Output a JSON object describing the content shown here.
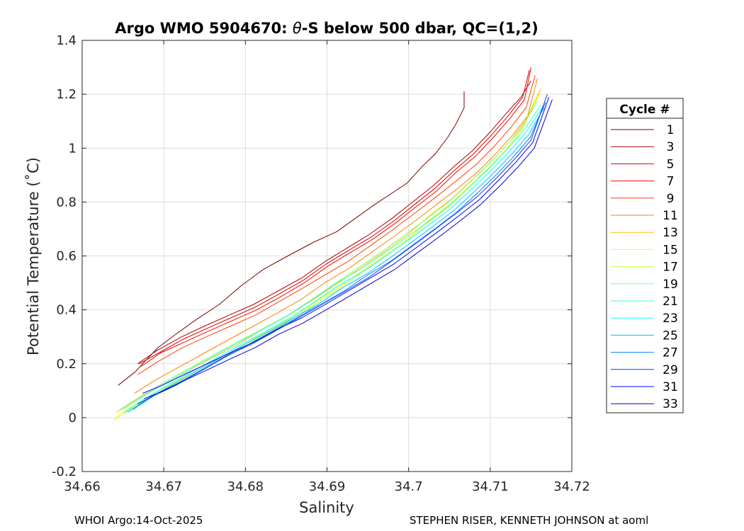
{
  "chart_data": {
    "type": "line",
    "title_prefix": "Argo WMO 5904670: ",
    "title_theta": "θ",
    "title_suffix": "-S below 500 dbar,  QC=(1,2)",
    "xlabel": "Salinity",
    "ylabel": "Potential Temperature (˚C)",
    "xlim": [
      34.66,
      34.72
    ],
    "ylim": [
      -0.2,
      1.4
    ],
    "xticks": [
      34.66,
      34.67,
      34.68,
      34.69,
      34.7,
      34.71,
      34.72
    ],
    "xtick_labels": [
      "34.66",
      "34.67",
      "34.68",
      "34.69",
      "34.7",
      "34.71",
      "34.72"
    ],
    "yticks": [
      -0.2,
      0,
      0.2,
      0.4,
      0.6,
      0.8,
      1,
      1.2,
      1.4
    ],
    "ytick_labels": [
      "-0.2",
      "0",
      "0.2",
      "0.4",
      "0.6",
      "0.8",
      "1",
      "1.2",
      "1.4"
    ],
    "grid": true,
    "legend_title": "Cycle #",
    "legend_position": "right-outside",
    "legend_entries": [
      {
        "label": "1",
        "color": "#800000"
      },
      {
        "label": "3",
        "color": "#AA0000"
      },
      {
        "label": "5",
        "color": "#D40000"
      },
      {
        "label": "7",
        "color": "#FF0000"
      },
      {
        "label": "9",
        "color": "#FF4000"
      },
      {
        "label": "11",
        "color": "#FF8000"
      },
      {
        "label": "13",
        "color": "#FFBF00"
      },
      {
        "label": "15",
        "color": "#FFFF00"
      },
      {
        "label": "17",
        "color": "#BFFF40"
      },
      {
        "label": "19",
        "color": "#80FF80"
      },
      {
        "label": "21",
        "color": "#40FFBF"
      },
      {
        "label": "23",
        "color": "#00FFFF"
      },
      {
        "label": "25",
        "color": "#00BFFF"
      },
      {
        "label": "27",
        "color": "#0080FF"
      },
      {
        "label": "29",
        "color": "#0040FF"
      },
      {
        "label": "31",
        "color": "#0000FF"
      },
      {
        "label": "33",
        "color": "#0000D4"
      }
    ],
    "series": [
      {
        "name": "1",
        "color": "#800000",
        "x": [
          34.6644,
          34.6665,
          34.6674,
          34.6693,
          34.6715,
          34.6738,
          34.6768,
          34.6795,
          34.6822,
          34.6852,
          34.6883,
          34.6912,
          34.6935,
          34.6958,
          34.6978,
          34.6998,
          34.7016,
          34.7033,
          34.7048,
          34.7058,
          34.7068,
          34.7068
        ],
        "y": [
          0.12,
          0.17,
          0.2,
          0.26,
          0.31,
          0.36,
          0.42,
          0.49,
          0.55,
          0.6,
          0.65,
          0.69,
          0.74,
          0.79,
          0.83,
          0.87,
          0.93,
          0.98,
          1.04,
          1.09,
          1.15,
          1.21
        ]
      },
      {
        "name": "3",
        "color": "#AA0000",
        "x": [
          34.6668,
          34.6692,
          34.6722,
          34.675,
          34.678,
          34.681,
          34.684,
          34.687,
          34.6898,
          34.6925,
          34.6952,
          34.698,
          34.7005,
          34.703,
          34.7055,
          34.7078,
          34.71,
          34.712,
          34.7138,
          34.715
        ],
        "y": [
          0.2,
          0.25,
          0.3,
          0.34,
          0.38,
          0.42,
          0.47,
          0.52,
          0.58,
          0.63,
          0.68,
          0.74,
          0.8,
          0.86,
          0.93,
          0.99,
          1.06,
          1.13,
          1.19,
          1.25
        ]
      },
      {
        "name": "5",
        "color": "#D40000",
        "x": [
          34.667,
          34.6694,
          34.6723,
          34.6752,
          34.6782,
          34.6812,
          34.6842,
          34.6871,
          34.6899,
          34.6926,
          34.6954,
          34.6982,
          34.7007,
          34.7032,
          34.7057,
          34.708,
          34.7102,
          34.7122,
          34.714,
          34.7148
        ],
        "y": [
          0.2,
          0.24,
          0.29,
          0.33,
          0.37,
          0.41,
          0.46,
          0.51,
          0.57,
          0.62,
          0.67,
          0.73,
          0.79,
          0.85,
          0.92,
          0.98,
          1.05,
          1.12,
          1.19,
          1.29
        ]
      },
      {
        "name": "7",
        "color": "#FF0000",
        "x": [
          34.6672,
          34.6696,
          34.6725,
          34.6754,
          34.6784,
          34.6814,
          34.6844,
          34.6872,
          34.69,
          34.6927,
          34.6955,
          34.6983,
          34.7008,
          34.7034,
          34.7058,
          34.7082,
          34.7104,
          34.7124,
          34.7142,
          34.715
        ],
        "y": [
          0.19,
          0.24,
          0.28,
          0.32,
          0.36,
          0.4,
          0.45,
          0.5,
          0.56,
          0.61,
          0.66,
          0.72,
          0.78,
          0.84,
          0.91,
          0.97,
          1.04,
          1.11,
          1.18,
          1.3
        ]
      },
      {
        "name": "9",
        "color": "#FF4000",
        "x": [
          34.6668,
          34.6694,
          34.6723,
          34.6752,
          34.6782,
          34.6812,
          34.6841,
          34.687,
          34.6898,
          34.6926,
          34.6954,
          34.6982,
          34.7008,
          34.7034,
          34.7059,
          34.7083,
          34.7106,
          34.7126,
          34.7144,
          34.7155
        ],
        "y": [
          0.16,
          0.21,
          0.26,
          0.3,
          0.34,
          0.38,
          0.43,
          0.48,
          0.53,
          0.58,
          0.64,
          0.7,
          0.76,
          0.82,
          0.88,
          0.94,
          1.01,
          1.08,
          1.15,
          1.27
        ]
      },
      {
        "name": "11",
        "color": "#FF8000",
        "x": [
          34.6664,
          34.669,
          34.672,
          34.675,
          34.678,
          34.681,
          34.684,
          34.6869,
          34.6897,
          34.6925,
          34.6953,
          34.6981,
          34.7008,
          34.7034,
          34.706,
          34.7084,
          34.7107,
          34.7128,
          34.7146,
          34.7158
        ],
        "y": [
          0.09,
          0.14,
          0.19,
          0.24,
          0.29,
          0.34,
          0.39,
          0.44,
          0.5,
          0.55,
          0.61,
          0.67,
          0.73,
          0.79,
          0.85,
          0.91,
          0.98,
          1.05,
          1.12,
          1.26
        ]
      },
      {
        "name": "13",
        "color": "#FFBF00",
        "x": [
          34.6642,
          34.6668,
          34.6697,
          34.6727,
          34.6758,
          34.679,
          34.6822,
          34.6853,
          34.6884,
          34.6914,
          34.6943,
          34.6972,
          34.6999,
          34.7026,
          34.7052,
          34.7077,
          34.7101,
          34.7123,
          34.7143,
          34.7162
        ],
        "y": [
          0.02,
          0.07,
          0.12,
          0.17,
          0.22,
          0.27,
          0.33,
          0.38,
          0.44,
          0.5,
          0.56,
          0.62,
          0.68,
          0.75,
          0.81,
          0.88,
          0.95,
          1.02,
          1.1,
          1.22
        ]
      },
      {
        "name": "15",
        "color": "#FFFF00",
        "x": [
          34.664,
          34.6666,
          34.6695,
          34.6725,
          34.6756,
          34.6788,
          34.682,
          34.6851,
          34.6882,
          34.6912,
          34.6941,
          34.697,
          34.6997,
          34.7024,
          34.705,
          34.7075,
          34.7099,
          34.7121,
          34.7141,
          34.716
        ],
        "y": [
          0.0,
          0.05,
          0.1,
          0.15,
          0.2,
          0.25,
          0.31,
          0.36,
          0.42,
          0.48,
          0.54,
          0.6,
          0.66,
          0.73,
          0.79,
          0.86,
          0.93,
          1.0,
          1.08,
          1.2
        ]
      },
      {
        "name": "17",
        "color": "#BFFF40",
        "x": [
          34.6638,
          34.6664,
          34.6693,
          34.6723,
          34.6754,
          34.6786,
          34.6818,
          34.6849,
          34.688,
          34.691,
          34.6939,
          34.6968,
          34.6995,
          34.7022,
          34.7048,
          34.7073,
          34.7097,
          34.7119,
          34.7139,
          34.7158
        ],
        "y": [
          -0.01,
          0.04,
          0.09,
          0.14,
          0.19,
          0.24,
          0.3,
          0.35,
          0.41,
          0.47,
          0.53,
          0.59,
          0.65,
          0.72,
          0.78,
          0.85,
          0.92,
          0.99,
          1.07,
          1.19
        ]
      },
      {
        "name": "19",
        "color": "#80FF80",
        "x": [
          34.6646,
          34.6672,
          34.67,
          34.6729,
          34.6759,
          34.679,
          34.6821,
          34.6852,
          34.6882,
          34.6911,
          34.694,
          34.6969,
          34.6996,
          34.7023,
          34.7049,
          34.7074,
          34.7098,
          34.712,
          34.714,
          34.7159
        ],
        "y": [
          0.03,
          0.08,
          0.13,
          0.18,
          0.23,
          0.28,
          0.33,
          0.38,
          0.44,
          0.5,
          0.56,
          0.62,
          0.68,
          0.74,
          0.8,
          0.87,
          0.94,
          1.01,
          1.08,
          1.18
        ]
      },
      {
        "name": "21",
        "color": "#40FFBF",
        "x": [
          34.665,
          34.6675,
          34.6703,
          34.6732,
          34.6762,
          34.6792,
          34.6823,
          34.6853,
          34.6883,
          34.6912,
          34.6941,
          34.697,
          34.6998,
          34.7025,
          34.7051,
          34.7076,
          34.71,
          34.7122,
          34.7142,
          34.7162
        ],
        "y": [
          0.03,
          0.08,
          0.13,
          0.18,
          0.23,
          0.28,
          0.33,
          0.38,
          0.44,
          0.5,
          0.55,
          0.61,
          0.67,
          0.73,
          0.79,
          0.86,
          0.93,
          1.0,
          1.07,
          1.16
        ]
      },
      {
        "name": "23",
        "color": "#00FFFF",
        "x": [
          34.6652,
          34.6677,
          34.6705,
          34.6734,
          34.6764,
          34.6794,
          34.6825,
          34.6855,
          34.6885,
          34.6914,
          34.6943,
          34.6972,
          34.7,
          34.7027,
          34.7053,
          34.7078,
          34.7102,
          34.7124,
          34.7144,
          34.7164
        ],
        "y": [
          0.02,
          0.07,
          0.12,
          0.17,
          0.22,
          0.27,
          0.32,
          0.37,
          0.43,
          0.49,
          0.54,
          0.6,
          0.66,
          0.72,
          0.78,
          0.85,
          0.92,
          0.99,
          1.06,
          1.15
        ]
      },
      {
        "name": "25",
        "color": "#00BFFF",
        "x": [
          34.6656,
          34.6681,
          34.6709,
          34.6738,
          34.6768,
          34.6798,
          34.6829,
          34.6859,
          34.6889,
          34.6918,
          34.6947,
          34.6976,
          34.7003,
          34.703,
          34.7056,
          34.7081,
          34.7105,
          34.7127,
          34.7147,
          34.7166
        ],
        "y": [
          0.02,
          0.07,
          0.12,
          0.17,
          0.22,
          0.27,
          0.32,
          0.37,
          0.42,
          0.48,
          0.53,
          0.59,
          0.65,
          0.71,
          0.77,
          0.84,
          0.91,
          0.98,
          1.05,
          1.15
        ]
      },
      {
        "name": "27",
        "color": "#0080FF",
        "x": [
          34.6662,
          34.6687,
          34.6715,
          34.6744,
          34.6773,
          34.6803,
          34.6833,
          34.6863,
          34.6892,
          34.6921,
          34.695,
          34.6978,
          34.7005,
          34.7032,
          34.7058,
          34.7083,
          34.7107,
          34.7129,
          34.7149,
          34.7168
        ],
        "y": [
          0.03,
          0.08,
          0.12,
          0.17,
          0.22,
          0.27,
          0.32,
          0.37,
          0.42,
          0.47,
          0.53,
          0.58,
          0.64,
          0.7,
          0.76,
          0.83,
          0.9,
          0.97,
          1.04,
          1.17
        ]
      },
      {
        "name": "29",
        "color": "#0040FF",
        "x": [
          34.6668,
          34.6692,
          34.6719,
          34.6748,
          34.6777,
          34.6806,
          34.6836,
          34.6865,
          34.6894,
          34.6923,
          34.6951,
          34.6979,
          34.7006,
          34.7033,
          34.7059,
          34.7084,
          34.7108,
          34.713,
          34.715,
          34.717
        ],
        "y": [
          0.05,
          0.09,
          0.13,
          0.18,
          0.23,
          0.27,
          0.32,
          0.37,
          0.42,
          0.47,
          0.52,
          0.58,
          0.64,
          0.7,
          0.76,
          0.82,
          0.89,
          0.96,
          1.03,
          1.2
        ]
      },
      {
        "name": "31",
        "color": "#0000FF",
        "x": [
          34.6674,
          34.6698,
          34.6725,
          34.6753,
          34.6781,
          34.681,
          34.684,
          34.6869,
          34.6898,
          34.6926,
          34.6954,
          34.6982,
          34.7009,
          34.7036,
          34.7062,
          34.7087,
          34.711,
          34.7132,
          34.7152,
          34.7172
        ],
        "y": [
          0.09,
          0.12,
          0.16,
          0.2,
          0.24,
          0.28,
          0.33,
          0.37,
          0.42,
          0.47,
          0.52,
          0.57,
          0.63,
          0.69,
          0.75,
          0.81,
          0.88,
          0.95,
          1.02,
          1.19
        ]
      },
      {
        "name": "33",
        "color": "#0000D4",
        "x": [
          34.6676,
          34.67,
          34.6727,
          34.6755,
          34.6783,
          34.6812,
          34.6841,
          34.687,
          34.6899,
          34.6927,
          34.6955,
          34.6983,
          34.701,
          34.7037,
          34.7063,
          34.7088,
          34.7112,
          34.7134,
          34.7154,
          34.7176
        ],
        "y": [
          0.07,
          0.1,
          0.14,
          0.18,
          0.22,
          0.26,
          0.31,
          0.35,
          0.4,
          0.45,
          0.5,
          0.55,
          0.61,
          0.67,
          0.73,
          0.79,
          0.86,
          0.93,
          1.0,
          1.18
        ]
      }
    ]
  },
  "footer": {
    "left": "WHOI Argo:14-Oct-2025",
    "right": "STEPHEN RISER, KENNETH JOHNSON at aoml"
  }
}
